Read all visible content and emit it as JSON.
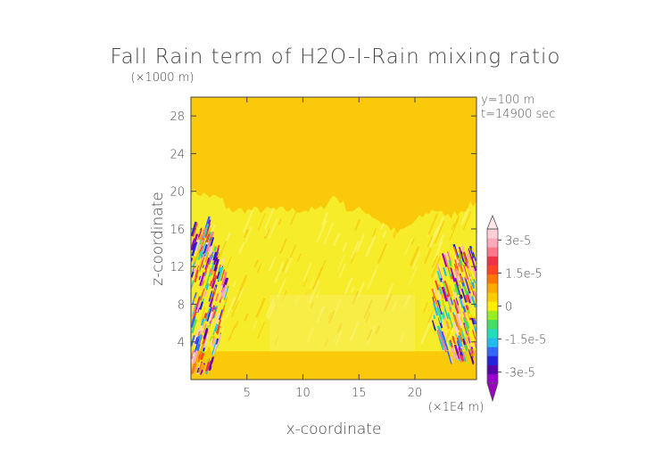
{
  "chart_data": {
    "type": "heatmap",
    "title": "Fall Rain term of H2O-I-Rain mixing ratio",
    "xlabel": "x-coordinate",
    "ylabel": "z-coordinate",
    "x_unit": "(×1E4 m)",
    "y_unit": "(×1000 m)",
    "annotations": [
      "y=100 m",
      "t=14900 sec"
    ],
    "xlim": [
      0,
      25.5
    ],
    "ylim": [
      0,
      30
    ],
    "x_ticks": [
      5,
      10,
      15,
      20
    ],
    "y_ticks": [
      4,
      8,
      12,
      16,
      20,
      24,
      28
    ],
    "colorbar": {
      "ticks": [
        {
          "label": "3e-5",
          "value": 3e-05
        },
        {
          "label": "1.5e-5",
          "value": 1.5e-05
        },
        {
          "label": "0",
          "value": 0
        },
        {
          "label": "-1.5e-5",
          "value": -1.5e-05
        },
        {
          "label": "-3e-5",
          "value": -3e-05
        }
      ],
      "range": [
        -3.5e-05,
        3.5e-05
      ],
      "colors": [
        "#9900cc",
        "#5500aa",
        "#2222dd",
        "#3366ff",
        "#22bbee",
        "#22ddbb",
        "#44dd66",
        "#99ee22",
        "#ffee00",
        "#ffcc00",
        "#ffaa00",
        "#ff7700",
        "#ff4422",
        "#ee3344",
        "#ff7788",
        "#ffaabb",
        "#ffd0d8"
      ]
    },
    "field_regions": [
      {
        "region": "background",
        "z_range": [
          0,
          30
        ],
        "approx_value": 0,
        "color": "#f9c90a"
      },
      {
        "region": "light-yellow band",
        "z_range": [
          3,
          20
        ],
        "approx_value": 0,
        "color": "#f6ec2a"
      },
      {
        "region": "left edge cloud",
        "x_range": [
          0,
          3
        ],
        "z_range": [
          0.5,
          16
        ],
        "approx_value_range": [
          -3e-05,
          3e-05
        ]
      },
      {
        "region": "right edge cloud",
        "x_range": [
          21.5,
          25.5
        ],
        "z_range": [
          1.5,
          13
        ],
        "approx_value_range": [
          -3e-05,
          3e-05
        ]
      }
    ]
  }
}
